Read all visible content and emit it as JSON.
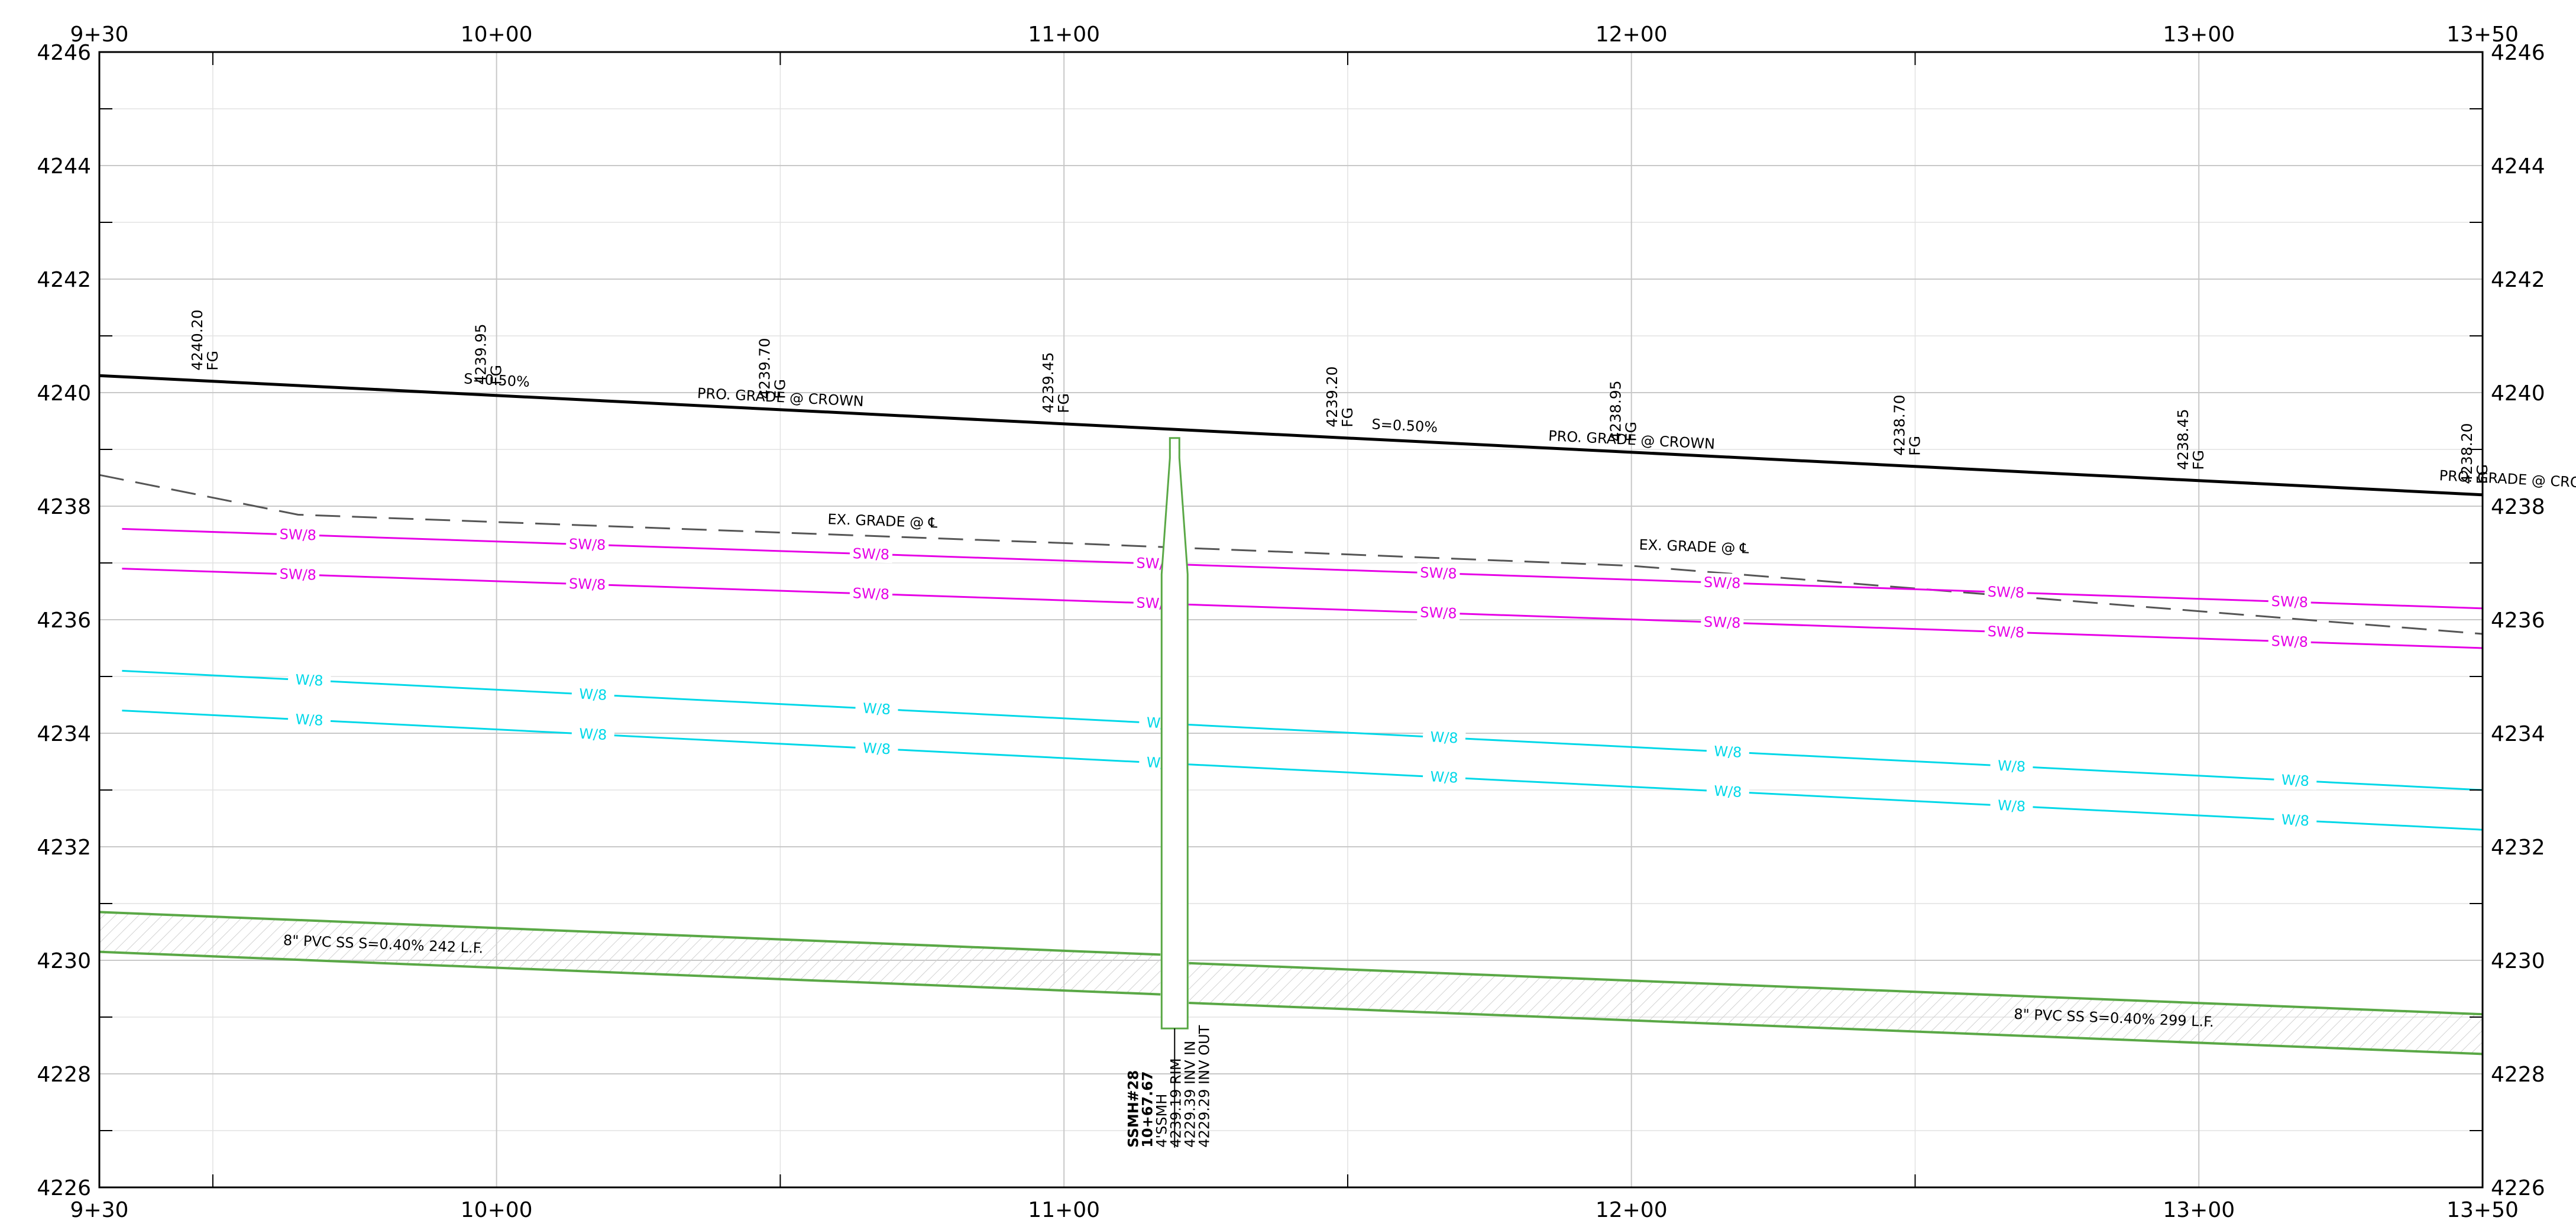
{
  "axes": {
    "x_ticks": [
      {
        "sta": 930,
        "label": "9+30"
      },
      {
        "sta": 1000,
        "label": "10+00"
      },
      {
        "sta": 1100,
        "label": "11+00"
      },
      {
        "sta": 1200,
        "label": "12+00"
      },
      {
        "sta": 1300,
        "label": "13+00"
      },
      {
        "sta": 1350,
        "label": "13+50"
      }
    ],
    "y_ticks": [
      {
        "elev": 4226,
        "label": "4226"
      },
      {
        "elev": 4228,
        "label": "4228"
      },
      {
        "elev": 4230,
        "label": "4230"
      },
      {
        "elev": 4232,
        "label": "4232"
      },
      {
        "elev": 4234,
        "label": "4234"
      },
      {
        "elev": 4236,
        "label": "4236"
      },
      {
        "elev": 4238,
        "label": "4238"
      },
      {
        "elev": 4240,
        "label": "4240"
      },
      {
        "elev": 4242,
        "label": "4242"
      },
      {
        "elev": 4244,
        "label": "4244"
      },
      {
        "elev": 4246,
        "label": "4246"
      }
    ],
    "x_range": [
      930,
      1350
    ],
    "y_range": [
      4226,
      4246
    ]
  },
  "finish_grades": [
    {
      "sta": 950,
      "value": "4240.20",
      "suffix": "FG"
    },
    {
      "sta": 1000,
      "value": "4239.95",
      "suffix": "FG"
    },
    {
      "sta": 1050,
      "value": "4239.70",
      "suffix": "FG"
    },
    {
      "sta": 1100,
      "value": "4239.45",
      "suffix": "FG"
    },
    {
      "sta": 1150,
      "value": "4239.20",
      "suffix": "FG"
    },
    {
      "sta": 1200,
      "value": "4238.95",
      "suffix": "FG"
    },
    {
      "sta": 1250,
      "value": "4238.70",
      "suffix": "FG"
    },
    {
      "sta": 1300,
      "value": "4238.45",
      "suffix": "FG"
    },
    {
      "sta": 1350,
      "value": "4238.20",
      "suffix": "FG"
    }
  ],
  "proposed_grade": {
    "start": {
      "sta": 930,
      "elev": 4240.3
    },
    "end": {
      "sta": 1350,
      "elev": 4238.2
    },
    "color": "#000000",
    "slope_labels": [
      {
        "sta": 1000,
        "elev": 4240.05,
        "text": "S=0.50%"
      },
      {
        "sta": 1160,
        "elev": 4239.25,
        "text": "S=0.50%"
      }
    ],
    "name_labels": [
      {
        "sta": 1050,
        "elev": 4239.75,
        "text": "PRO. GRADE @ CROWN"
      },
      {
        "sta": 1200,
        "elev": 4239.0,
        "text": "PRO. GRADE @ CROWN"
      },
      {
        "sta": 1357,
        "elev": 4238.3,
        "text": "PRO. GRADE @ CROWN"
      }
    ]
  },
  "existing_grade": {
    "points": [
      {
        "sta": 930,
        "elev": 4238.55
      },
      {
        "sta": 965,
        "elev": 4237.85
      },
      {
        "sta": 1100,
        "elev": 4237.35
      },
      {
        "sta": 1200,
        "elev": 4236.95
      },
      {
        "sta": 1350,
        "elev": 4235.75
      }
    ],
    "color": "#555555",
    "labels": [
      {
        "sta": 1068,
        "elev": 4237.55,
        "text": "EX. GRADE @ ℄"
      },
      {
        "sta": 1211,
        "elev": 4237.1,
        "text": "EX. GRADE @ ℄"
      }
    ]
  },
  "utilities": {
    "storm": {
      "label": "SW/8",
      "color": "#e600e6",
      "lines": [
        {
          "start": {
            "sta": 934,
            "elev": 4237.6
          },
          "end": {
            "sta": 1350,
            "elev": 4236.2
          }
        },
        {
          "start": {
            "sta": 934,
            "elev": 4236.9
          },
          "end": {
            "sta": 1350,
            "elev": 4235.5
          }
        }
      ],
      "label_stations": [
        965,
        1016,
        1066,
        1116,
        1166,
        1216,
        1266,
        1316
      ]
    },
    "water": {
      "label": "W/8",
      "color": "#00d8e8",
      "lines": [
        {
          "start": {
            "sta": 934,
            "elev": 4235.1
          },
          "end": {
            "sta": 1350,
            "elev": 4233.0
          }
        },
        {
          "start": {
            "sta": 934,
            "elev": 4234.4
          },
          "end": {
            "sta": 1350,
            "elev": 4232.3
          }
        }
      ],
      "label_stations": [
        967,
        1017,
        1067,
        1117,
        1167,
        1217,
        1267,
        1317
      ]
    }
  },
  "sewer": {
    "color": "#5aa846",
    "hatch_color": "#d2d2d2",
    "left": {
      "top_start": {
        "sta": 930,
        "elev": 4230.85
      },
      "top_end": {
        "sta": 1117,
        "elev": 4230.1
      },
      "bot_start": {
        "sta": 930,
        "elev": 4230.15
      },
      "bot_end": {
        "sta": 1117,
        "elev": 4229.4
      },
      "label": "8\" PVC SS S=0.40% 242 L.F.",
      "label_pos": {
        "sta": 980,
        "elev": 4230.2
      }
    },
    "right": {
      "top_start": {
        "sta": 1122,
        "elev": 4229.95
      },
      "top_end": {
        "sta": 1350,
        "elev": 4229.05
      },
      "bot_start": {
        "sta": 1122,
        "elev": 4229.25
      },
      "bot_end": {
        "sta": 1350,
        "elev": 4228.35
      },
      "label": "8\" PVC SS S=0.40% 299 L.F.",
      "label_pos": {
        "sta": 1285,
        "elev": 4228.9
      }
    }
  },
  "manhole": {
    "sta": 1119.5,
    "rim_elev": 4239.2,
    "bottom_elev": 4228.8,
    "color": "#5aa846",
    "labels": [
      "SSMH#28",
      "10+67.67",
      "4'SSMH",
      "4239.19 RIM",
      "4229.39 INV IN",
      "4229.29 INV OUT"
    ]
  }
}
